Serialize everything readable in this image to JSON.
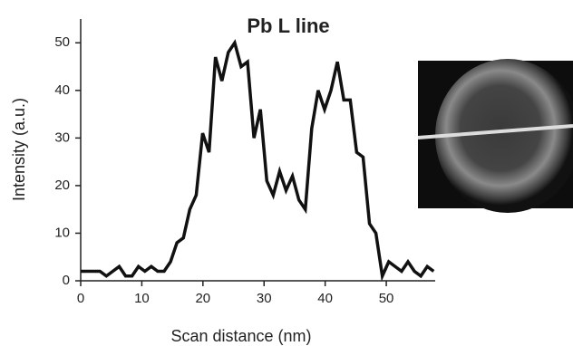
{
  "chart_data": {
    "type": "line",
    "title": "Pb L line",
    "x_label": "Scan distance (nm)",
    "y_label": "Intensity (a.u.)",
    "x": [
      0,
      1.05,
      2.1,
      3.15,
      4.2,
      5.25,
      6.3,
      7.35,
      8.4,
      9.45,
      10.5,
      11.55,
      12.6,
      13.65,
      14.7,
      15.75,
      16.8,
      17.85,
      18.9,
      19.95,
      21,
      22.05,
      23.1,
      24.15,
      25.2,
      26.25,
      27.3,
      28.35,
      29.4,
      30.45,
      31.5,
      32.55,
      33.6,
      34.65,
      35.7,
      36.75,
      37.8,
      38.85,
      39.9,
      40.95,
      42,
      43.05,
      44.1,
      45.15,
      46.2,
      47.25,
      48.3,
      49.35,
      50.4,
      51.45,
      52.5,
      53.55,
      54.6,
      55.65,
      56.7,
      57.75
    ],
    "series": [
      {
        "color": "#111111",
        "values": [
          2,
          2,
          2,
          2,
          1,
          2,
          3,
          1,
          1,
          3,
          2,
          3,
          2,
          2,
          4,
          8,
          9,
          15,
          18,
          31,
          27,
          47,
          42,
          48,
          50,
          45,
          46,
          30,
          36,
          21,
          18,
          23,
          19,
          22,
          17,
          15,
          32,
          40,
          36,
          40,
          46,
          38,
          38,
          27,
          26,
          12,
          10,
          1,
          4,
          3,
          2,
          4,
          2,
          1,
          3,
          2
        ]
      }
    ],
    "xlim": [
      0,
      58
    ],
    "ylim": [
      0,
      55
    ],
    "xticks": [
      0,
      10,
      20,
      30,
      40,
      50
    ],
    "yticks": [
      0,
      10,
      20,
      30,
      40,
      50
    ]
  }
}
